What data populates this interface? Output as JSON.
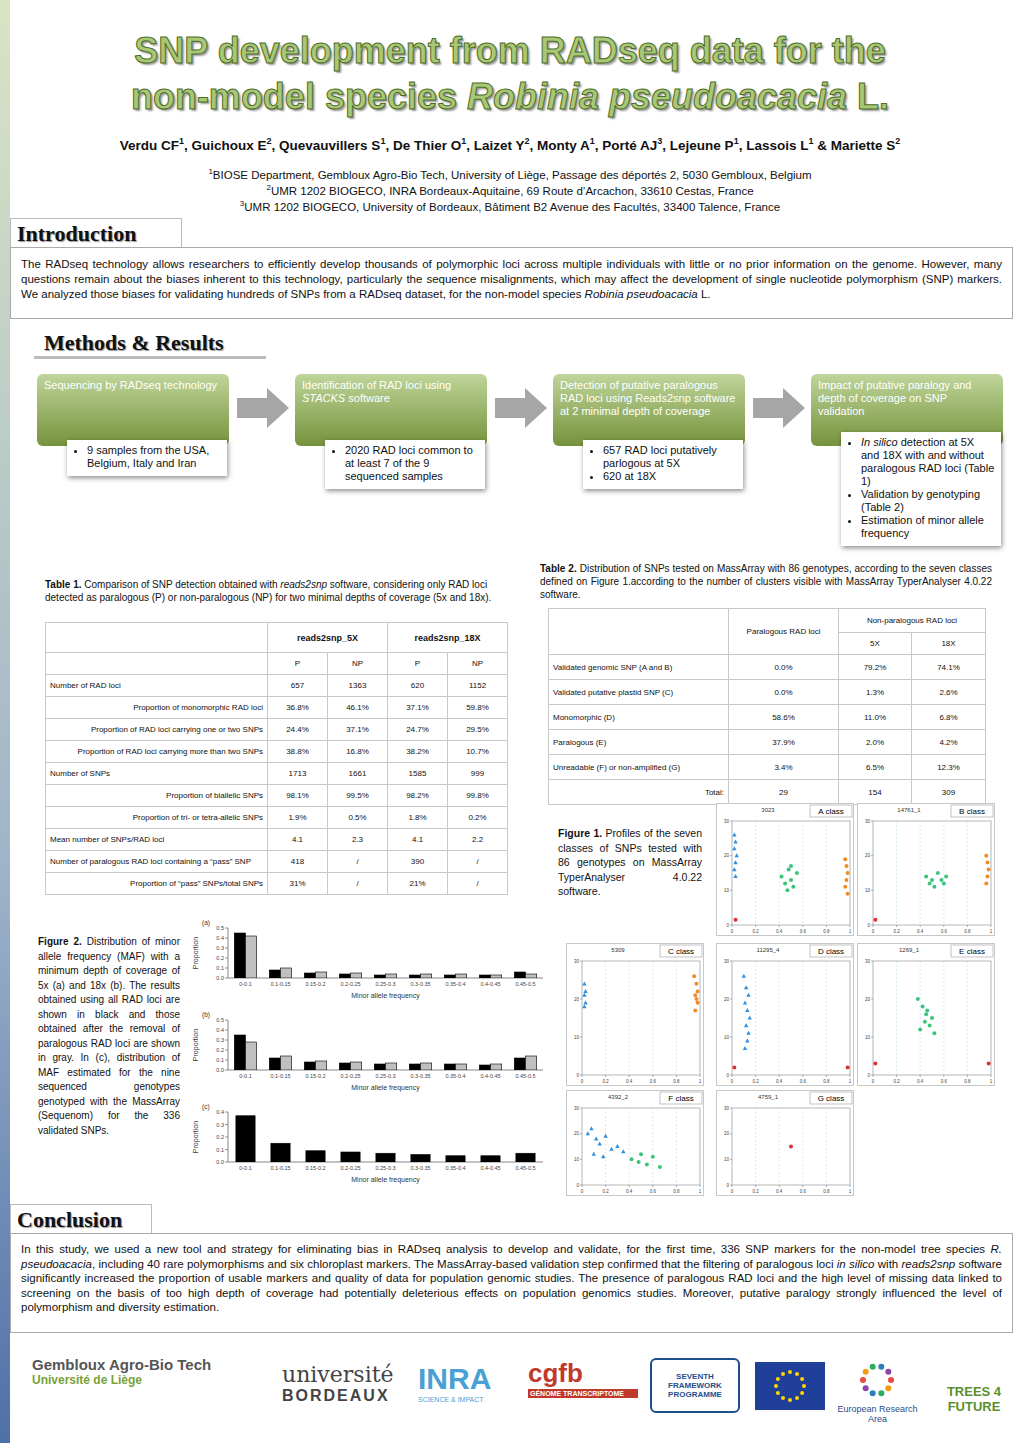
{
  "header": {
    "title_line1": "SNP development from RADseq data for the",
    "title_line2": [
      "non-model species ",
      {
        "i": "Robinia pseudoacacia"
      },
      " L."
    ],
    "authors": [
      {
        "name": "Verdu CF",
        "aff": "1",
        "sep": ", "
      },
      {
        "name": "Guichoux E",
        "aff": "2",
        "sep": ", "
      },
      {
        "name": "Quevauvillers S",
        "aff": "1",
        "sep": ", "
      },
      {
        "name": "De Thier O",
        "aff": "1",
        "sep": ", "
      },
      {
        "name": "Laizet Y",
        "aff": "2",
        "sep": ", "
      },
      {
        "name": "Monty A",
        "aff": "1",
        "sep": ", "
      },
      {
        "name": "Porté AJ",
        "aff": "3",
        "sep": ", "
      },
      {
        "name": "Lejeune P",
        "aff": "1",
        "sep": ", "
      },
      {
        "name": "Lassois L",
        "aff": "1",
        "sep": " & "
      },
      {
        "name": "Mariette S",
        "aff": "2"
      }
    ],
    "affiliations": [
      {
        "num": "1",
        "text": "BIOSE Department, Gembloux Agro-Bio Tech, University of Liège, Passage des déportés 2, 5030 Gembloux, Belgium"
      },
      {
        "num": "2",
        "text": "UMR 1202 BIOGECO, INRA Bordeaux-Aquitaine, 69 Route d’Arcachon, 33610 Cestas, France"
      },
      {
        "num": "3",
        "text": "UMR 1202 BIOGECO, University of Bordeaux, Bâtiment B2 Avenue des Facultés, 33400 Talence, France"
      }
    ]
  },
  "introduction": {
    "heading": "Introduction",
    "text": [
      "The RADseq technology allows researchers to efficiently develop thousands of polymorphic loci across multiple individuals with little or no prior information on the genome. However, many questions remain about the biases inherent to this technology, particularly the sequence misalignments, which may affect the development of single nucleotide polymorphism (SNP) markers. We analyzed those biases for validating hundreds of SNPs from a RADseq dataset, for the non-model species ",
      {
        "i": "Robinia pseudoacacia"
      },
      " L."
    ]
  },
  "methods": {
    "heading": "Methods & Results",
    "steps": [
      {
        "title": "Sequencing by RADseq technology",
        "bullets": [
          "9 samples from the USA, Belgium, Italy and Iran"
        ]
      },
      {
        "title": [
          "Identification of RAD loci using ",
          {
            "i": "STACKS"
          },
          " software"
        ],
        "bullets": [
          "2020 RAD loci common to at least 7 of the 9 sequenced samples"
        ]
      },
      {
        "title": "Detection of putative paralogous RAD loci using Reads2snp software at 2 minimal depth of coverage",
        "bullets": [
          "657 RAD loci putatively parlogous at 5X",
          "620 at 18X"
        ]
      },
      {
        "title": "Impact of putative paralogy and depth of coverage on SNP validation",
        "bullets": [
          [
            {
              "i": "In silico"
            },
            " detection at 5X and 18X with and without paralogous RAD loci (Table 1)"
          ],
          "Validation by genotyping (Table 2)",
          "Estimation of minor allele frequency"
        ]
      }
    ]
  },
  "table1": {
    "caption": [
      {
        "b": "Table 1."
      },
      " Comparison of SNP detection obtained with ",
      {
        "i": "reads2snp"
      },
      " software, considering only RAD loci detected as paralogous (P) or non-paralogous (NP) for two minimal depths of coverage (5x and 18x)."
    ],
    "header": [
      "reads2snp_5X",
      "reads2snp_18X"
    ],
    "subheader": [
      "P",
      "NP",
      "P",
      "NP"
    ],
    "rows": [
      {
        "label": "Number of RAD loci",
        "cells": [
          "657",
          "1363",
          "620",
          "1152"
        ]
      },
      {
        "label": "Proportion of monomorphic RAD loci",
        "cells": [
          "36.8%",
          "46.1%",
          "37.1%",
          "59.8%"
        ]
      },
      {
        "label": "Proportion of RAD loci carrying one or two SNPs",
        "cells": [
          "24.4%",
          "37.1%",
          "24.7%",
          "29.5%"
        ]
      },
      {
        "label": "Proportion of RAD loci carrying more than two SNPs",
        "cells": [
          "38.8%",
          "16.8%",
          "38.2%",
          "10.7%"
        ]
      },
      {
        "label": "Number of SNPs",
        "cells": [
          "1713",
          "1661",
          "1585",
          "999"
        ]
      },
      {
        "label": "Proportion of biallelic SNPs",
        "cells": [
          "98.1%",
          "99.5%",
          "98.2%",
          "99.8%"
        ]
      },
      {
        "label": "Proportion of tri- or tetra-allelic SNPs",
        "cells": [
          "1.9%",
          "0.5%",
          "1.8%",
          "0.2%"
        ]
      },
      {
        "label": "Mean number of SNPs/RAD loci",
        "cells": [
          "4.1",
          "2.3",
          "4.1",
          "2.2"
        ]
      },
      {
        "label": "Number of paralogous RAD loci containing  a “pass” SNP",
        "cells": [
          "418",
          "/",
          "390",
          "/"
        ]
      },
      {
        "label": "Proportion of “pass” SNPs/total SNPs",
        "cells": [
          "31%",
          "/",
          "21%",
          "/"
        ]
      }
    ]
  },
  "table2": {
    "caption": [
      {
        "b": "Table 2."
      },
      " Distribution of SNPs tested on MassArray with 86 genotypes, according to the seven classes defined on Figure 1.according to the number of clusters visible with MassArray TyperAnalyser 4.0.22 software."
    ],
    "paralogous": "Paralogous RAD loci",
    "nonparalogous": "Non-paralogous RAD loci",
    "depths": [
      "5X",
      "18X"
    ],
    "rows": [
      {
        "label": "Validated genomic SNP (A and B)",
        "cells": [
          "0.0%",
          "79.2%",
          "74.1%"
        ]
      },
      {
        "label": "Validated putative plastid SNP (C)",
        "cells": [
          "0.0%",
          "1.3%",
          "2.6%"
        ]
      },
      {
        "label": "Monomorphic (D)",
        "cells": [
          "58.6%",
          "11.0%",
          "6.8%"
        ]
      },
      {
        "label": "Paralogous (E)",
        "cells": [
          "37.9%",
          "2.0%",
          "4.2%"
        ]
      },
      {
        "label": "Unreadable (F) or non-amplified (G)",
        "cells": [
          "3.4%",
          "6.5%",
          "12.3%"
        ]
      },
      {
        "label": "Total:",
        "cells": [
          "29",
          "154",
          "309"
        ]
      }
    ]
  },
  "figure1": {
    "caption": [
      {
        "b": "Figure 1."
      },
      " Profiles of the seven classes of SNPs tested with 86 genotypes on MassArray TyperAnalyser 4.0.22 software."
    ]
  },
  "figure2": {
    "caption": [
      {
        "b": "Figure 2."
      },
      " Distribution of minor allele frequency (MAF) with a minimum depth of coverage of 5x (a) and 18x (b). The results obtained using all RAD loci are shown in black and those obtained after the removal of paralogous RAD loci are shown in gray. In (c), distribution of MAF estimated for the nine sequenced genotypes genotyped with the MassArray (Sequenom) for the 336 validated SNPs."
    ]
  },
  "chart_data": [
    {
      "type": "scatter",
      "title": "A class",
      "subtitle": "3023",
      "xlim": [
        0,
        1
      ],
      "ylim": [
        0,
        30
      ],
      "xticks": [
        0,
        0.2,
        0.4,
        0.6,
        0.8,
        1
      ],
      "yticks": [
        0,
        10,
        20,
        30
      ],
      "series": [
        {
          "color": "#2f8fe0",
          "marker": "triangle",
          "x": [
            0.02,
            0.03,
            0.02,
            0.04,
            0.03,
            0.02,
            0.03
          ],
          "values": [
            26,
            24,
            22,
            20,
            18,
            16,
            14
          ]
        },
        {
          "color": "#3cc47c",
          "marker": "circle",
          "x": [
            0.42,
            0.45,
            0.48,
            0.5,
            0.52,
            0.55,
            0.47,
            0.5
          ],
          "values": [
            14,
            12,
            16,
            13,
            11,
            15,
            10,
            17
          ]
        },
        {
          "color": "#f08c28",
          "marker": "circle",
          "x": [
            0.96,
            0.97,
            0.98,
            0.97,
            0.96,
            0.98
          ],
          "values": [
            19,
            17,
            15,
            13,
            11,
            9
          ]
        },
        {
          "color": "#e03030",
          "marker": "circle",
          "x": [
            0.03
          ],
          "values": [
            1.5
          ]
        }
      ]
    },
    {
      "type": "scatter",
      "title": "B class",
      "subtitle": "14761_1",
      "xlim": [
        0,
        1
      ],
      "ylim": [
        0,
        30
      ],
      "xticks": [
        0,
        0.2,
        0.4,
        0.6,
        0.8,
        1
      ],
      "yticks": [
        0,
        10,
        20,
        30
      ],
      "series": [
        {
          "color": "#3cc47c",
          "marker": "circle",
          "x": [
            0.45,
            0.5,
            0.55,
            0.6,
            0.52,
            0.58,
            0.48,
            0.62
          ],
          "values": [
            14,
            13,
            15,
            12,
            11,
            13,
            12,
            14
          ]
        },
        {
          "color": "#f08c28",
          "marker": "circle",
          "x": [
            0.96,
            0.97,
            0.98,
            0.97,
            0.96
          ],
          "values": [
            20,
            18,
            16,
            14,
            12
          ]
        },
        {
          "color": "#e03030",
          "marker": "circle",
          "x": [
            0.02
          ],
          "values": [
            1.5
          ]
        }
      ]
    },
    {
      "type": "scatter",
      "title": "C class",
      "subtitle": "5309",
      "xlim": [
        0,
        1
      ],
      "ylim": [
        0,
        30
      ],
      "xticks": [
        0,
        0.2,
        0.4,
        0.6,
        0.8,
        1
      ],
      "yticks": [
        0,
        10,
        20,
        30
      ],
      "series": [
        {
          "color": "#2f8fe0",
          "marker": "triangle",
          "x": [
            0.02,
            0.03,
            0.02,
            0.03,
            0.02
          ],
          "values": [
            24,
            22,
            21,
            19,
            18
          ]
        },
        {
          "color": "#f08c28",
          "marker": "circle",
          "x": [
            0.95,
            0.97,
            0.98,
            0.96,
            0.97,
            0.98,
            0.96
          ],
          "values": [
            26,
            24,
            22,
            21,
            20,
            19,
            17
          ]
        }
      ]
    },
    {
      "type": "scatter",
      "title": "D class",
      "subtitle": "11295_4",
      "xlim": [
        0,
        1
      ],
      "ylim": [
        0,
        30
      ],
      "xticks": [
        0,
        0.2,
        0.4,
        0.6,
        0.8,
        1
      ],
      "yticks": [
        0,
        10,
        20,
        30
      ],
      "series": [
        {
          "color": "#2f8fe0",
          "marker": "triangle",
          "x": [
            0.1,
            0.12,
            0.14,
            0.11,
            0.13,
            0.15,
            0.12,
            0.14,
            0.13,
            0.11
          ],
          "values": [
            26,
            23,
            21,
            19,
            17,
            15,
            13,
            11,
            9,
            7
          ]
        },
        {
          "color": "#e03030",
          "marker": "circle",
          "x": [
            0.02,
            0.98
          ],
          "values": [
            2,
            2
          ]
        }
      ]
    },
    {
      "type": "scatter",
      "title": "E class",
      "subtitle": "1269_1",
      "xlim": [
        0,
        1
      ],
      "ylim": [
        0,
        30
      ],
      "xticks": [
        0,
        0.2,
        0.4,
        0.6,
        0.8,
        1
      ],
      "yticks": [
        0,
        10,
        20,
        30
      ],
      "series": [
        {
          "color": "#3cc47c",
          "marker": "circle",
          "x": [
            0.38,
            0.42,
            0.46,
            0.5,
            0.44,
            0.48,
            0.4,
            0.52,
            0.45
          ],
          "values": [
            20,
            18,
            17,
            15,
            14,
            13,
            12,
            11,
            16
          ]
        },
        {
          "color": "#e03030",
          "marker": "circle",
          "x": [
            0.02,
            0.98
          ],
          "values": [
            3,
            3
          ]
        }
      ]
    },
    {
      "type": "scatter",
      "title": "F class",
      "subtitle": "4392_2",
      "xlim": [
        0,
        1
      ],
      "ylim": [
        0,
        30
      ],
      "xticks": [
        0,
        0.2,
        0.4,
        0.6,
        0.8,
        1
      ],
      "yticks": [
        0,
        10,
        20,
        30
      ],
      "series": [
        {
          "color": "#2f8fe0",
          "marker": "triangle",
          "x": [
            0.05,
            0.08,
            0.12,
            0.15,
            0.2,
            0.25,
            0.3,
            0.1,
            0.18,
            0.35
          ],
          "values": [
            20,
            22,
            18,
            16,
            19,
            14,
            15,
            12,
            11,
            13
          ]
        },
        {
          "color": "#3cc47c",
          "marker": "circle",
          "x": [
            0.42,
            0.48,
            0.55,
            0.6,
            0.66,
            0.5
          ],
          "values": [
            10,
            9,
            8,
            11,
            7,
            12
          ]
        }
      ]
    },
    {
      "type": "scatter",
      "title": "G class",
      "subtitle": "4759_1",
      "xlim": [
        0,
        1
      ],
      "ylim": [
        0,
        30
      ],
      "xticks": [
        0,
        0.2,
        0.4,
        0.6,
        0.8,
        1
      ],
      "yticks": [
        0,
        10,
        20,
        30
      ],
      "series": [
        {
          "color": "#e03030",
          "marker": "circle",
          "x": [
            0.5
          ],
          "values": [
            15
          ]
        }
      ]
    },
    {
      "type": "bar",
      "title": "(a)",
      "x_label": "Minor allele frequency",
      "y_label": "Proportion",
      "categories": [
        "0-0.1",
        "0.1-0.15",
        "0.15-0.2",
        "0.2-0.25",
        "0.25-0.3",
        "0.3-0.35",
        "0.35-0.4",
        "0.4-0.45",
        "0.45-0.5"
      ],
      "ylim": [
        0,
        0.5
      ],
      "yticks": [
        {
          "value": 0,
          "label": "0.0"
        },
        0.1,
        0.2,
        0.3,
        0.4,
        0.5
      ],
      "series": [
        {
          "color": "#000000",
          "values": [
            0.45,
            0.08,
            0.05,
            0.04,
            0.03,
            0.03,
            0.03,
            0.03,
            0.06
          ]
        },
        {
          "color": "#c0c0c0",
          "values": [
            0.42,
            0.1,
            0.06,
            0.05,
            0.04,
            0.04,
            0.04,
            0.03,
            0.04
          ]
        }
      ]
    },
    {
      "type": "bar",
      "title": "(b)",
      "x_label": "Minor allele frequency",
      "y_label": "Proportion",
      "categories": [
        "0-0.1",
        "0.1-0.15",
        "0.15-0.2",
        "0.2-0.25",
        "0.25-0.3",
        "0.3-0.35",
        "0.35-0.4",
        "0.4-0.45",
        "0.45-0.5"
      ],
      "ylim": [
        0,
        0.5
      ],
      "yticks": [
        {
          "value": 0,
          "label": "0.0"
        },
        0.1,
        0.2,
        0.3,
        0.4,
        0.5
      ],
      "series": [
        {
          "color": "#000000",
          "values": [
            0.35,
            0.12,
            0.08,
            0.07,
            0.06,
            0.06,
            0.06,
            0.05,
            0.12
          ]
        },
        {
          "color": "#c0c0c0",
          "values": [
            0.28,
            0.14,
            0.09,
            0.08,
            0.07,
            0.07,
            0.06,
            0.06,
            0.14
          ]
        }
      ]
    },
    {
      "type": "bar",
      "title": "(c)",
      "x_label": "Minor allele frequency",
      "y_label": "Proportion",
      "categories": [
        "0-0.1",
        "0.1-0.15",
        "0.15-0.2",
        "0.2-0.25",
        "0.25-0.3",
        "0.3-0.35",
        "0.35-0.4",
        "0.4-0.45",
        "0.45-0.5"
      ],
      "ylim": [
        0,
        0.4
      ],
      "yticks": [
        {
          "value": 0,
          "label": "0.0"
        },
        0.1,
        0.2,
        0.3,
        0.4
      ],
      "series": [
        {
          "color": "#000000",
          "values": [
            0.37,
            0.15,
            0.09,
            0.08,
            0.07,
            0.06,
            0.05,
            0.05,
            0.07
          ]
        }
      ]
    }
  ],
  "conclusion": {
    "heading": "Conclusion",
    "text": [
      "In this study, we used a new tool and strategy for eliminating bias in RADseq analysis to develop and validate, for the first time, 336 SNP markers for the non-model tree species ",
      {
        "i": "R. pseudoacacia"
      },
      ", including 40 rare polymorphisms and six chloroplast markers. The MassArray-based validation step confirmed that the filtering of paralogous loci ",
      {
        "i": "in silico"
      },
      " with ",
      {
        "i": "reads2snp"
      },
      " software significantly increased the proportion of usable markers and quality of data for population genomic studies. The presence of paralogous RAD loci and the high level of missing data linked to screening on the basis of too high depth of coverage had potentially deleterious effects on population genomics studies. Moreover, putative paralogy strongly influenced the level of polymorphism and diversity estimation."
    ]
  },
  "logos": [
    {
      "t": "Gembloux Agro-Bio Tech",
      "s": "Université de Liège"
    },
    {
      "t": "université",
      "s": "BORDEAUX"
    },
    {
      "t": "INRA",
      "s": "SCIENCE & IMPACT"
    },
    {
      "t": "cgfb",
      "s": "GÉNOME TRANSCRIPTOME"
    },
    {
      "t": "SEVENTH FRAMEWORK PROGRAMME"
    },
    {
      "t": "European Research Area"
    },
    {
      "t": "TREES 4 FUTURE"
    }
  ]
}
